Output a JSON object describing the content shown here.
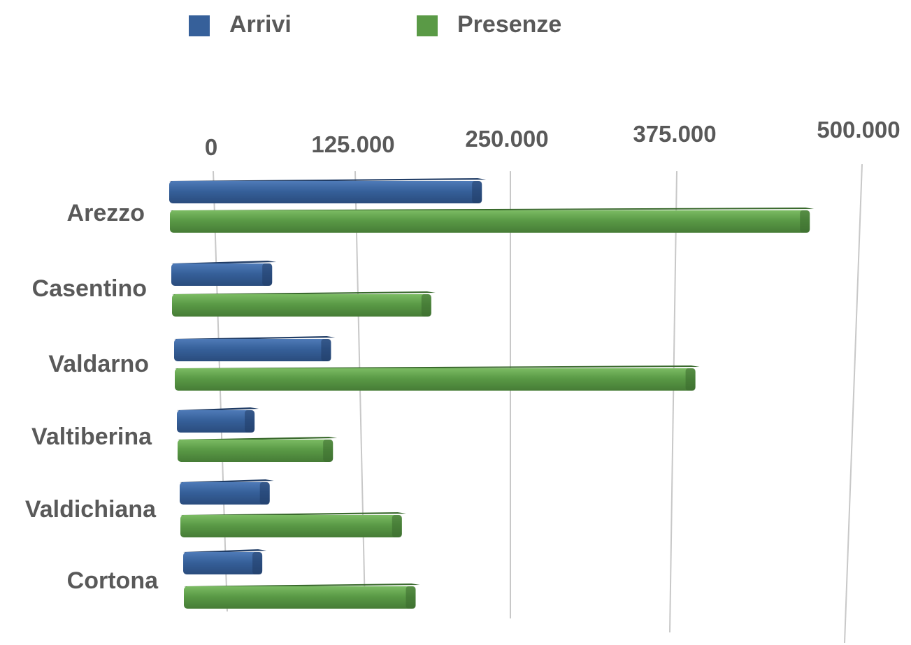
{
  "chart_data": {
    "type": "bar",
    "orientation": "horizontal",
    "three_d": true,
    "categories": [
      "Arezzo",
      "Casentino",
      "Valdarno",
      "Valtiberina",
      "Valdichiana",
      "Cortona"
    ],
    "series": [
      {
        "name": "Arrivi",
        "color": "#36609a",
        "values": [
          215000,
          70000,
          110000,
          55000,
          65000,
          58000
        ]
      },
      {
        "name": "Presenze",
        "color": "#5a9a46",
        "values": [
          440000,
          180000,
          365000,
          110000,
          160000,
          170000
        ]
      }
    ],
    "x_ticks": [
      "0",
      "125.000",
      "250.000",
      "375.000",
      "500.000"
    ],
    "xlim": [
      0,
      500000
    ],
    "xlabel": "",
    "ylabel": "",
    "title": "",
    "grid": true,
    "legend_position": "top"
  }
}
